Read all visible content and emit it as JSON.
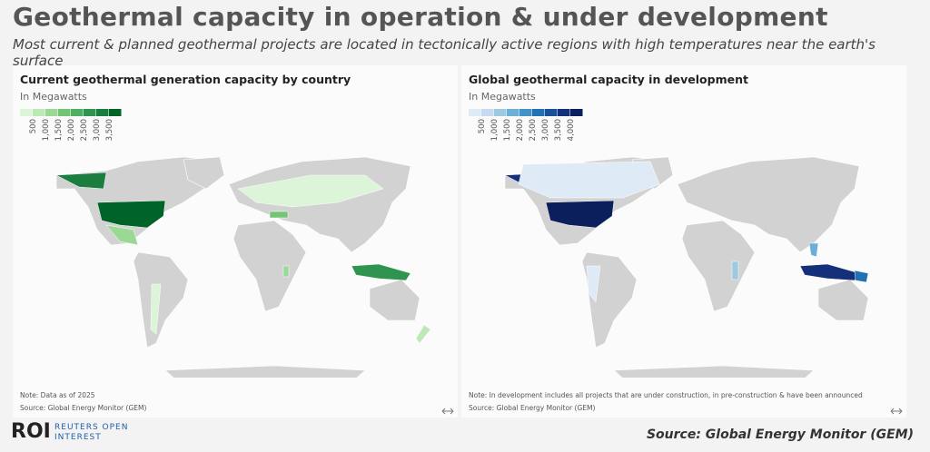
{
  "header": {
    "title": "Geothermal capacity in operation & under development",
    "subtitle": "Most current & planned geothermal projects are located in tectonically active regions with high temperatures near the earth's surface"
  },
  "panels": [
    {
      "title": "Current geothermal generation capacity by country",
      "unit": "In Megawatts",
      "legend": {
        "labels": [
          "500",
          "1,000",
          "1,500",
          "2,000",
          "2,500",
          "3,000",
          "3,500"
        ],
        "colors": [
          "#dcf5d8",
          "#bde9b6",
          "#9bd896",
          "#74c476",
          "#4eaf62",
          "#2f9450",
          "#1b7d3f",
          "#006428"
        ]
      },
      "note": "Note: Data as of 2025",
      "source": "Source: Global Energy Monitor (GEM)"
    },
    {
      "title": "Global geothermal capacity in development",
      "unit": "In Megawatts",
      "legend": {
        "labels": [
          "500",
          "1,000",
          "1,500",
          "2,000",
          "2,500",
          "3,000",
          "3,500",
          "4,000"
        ],
        "colors": [
          "#deebf7",
          "#c6dbef",
          "#9ecae1",
          "#6baed6",
          "#4292c6",
          "#2171b5",
          "#1a4f99",
          "#14307a",
          "#0a1f5c"
        ]
      },
      "note": "Note: In development includes all projects that are under construction, in pre-construction & have been announced",
      "source": "Source: Global Energy Monitor (GEM)"
    }
  ],
  "footer": {
    "logo": "ROI",
    "brand": [
      "REUTERS OPEN",
      "INTEREST"
    ],
    "source": "Source:  Global Energy Monitor (GEM)"
  }
}
